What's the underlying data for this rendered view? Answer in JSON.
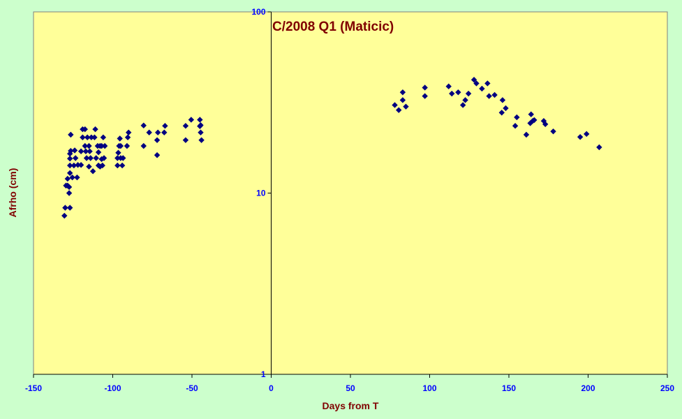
{
  "chart_data": {
    "type": "scatter",
    "title": "C/2008 Q1 (Maticic)",
    "xlabel": "Days from T",
    "ylabel": "Afrho (cm)",
    "xlim": [
      -150,
      250
    ],
    "ylim": [
      1,
      100
    ],
    "y_scale": "log",
    "x_ticks": [
      -150,
      -100,
      -50,
      0,
      50,
      100,
      150,
      200,
      250
    ],
    "y_ticks": [
      1,
      10,
      100
    ],
    "x_tick_labels": [
      "-150",
      "-100",
      "-50",
      "0",
      "50",
      "100",
      "150",
      "200",
      "250"
    ],
    "y_tick_labels": [
      "1",
      "10",
      "100"
    ],
    "grid": false,
    "legend": "none",
    "colors": {
      "plot_background": "#ffff99",
      "page_background": "#ccffcc",
      "marker": "#000080",
      "tick_text": "#0000ff",
      "title_text": "#800000"
    },
    "series": [
      {
        "marker": "diamond",
        "points": [
          [
            -130.5,
            7.5
          ],
          [
            -130,
            8.3
          ],
          [
            -129.5,
            11
          ],
          [
            -128.5,
            12
          ],
          [
            -128.5,
            11
          ],
          [
            -127,
            8.3
          ],
          [
            -127.5,
            10
          ],
          [
            -127.5,
            10.8
          ],
          [
            -127,
            12.9
          ],
          [
            -127,
            14.2
          ],
          [
            -127,
            15.5
          ],
          [
            -127,
            16.5
          ],
          [
            -126.5,
            17.1
          ],
          [
            -126.5,
            21
          ],
          [
            -125.5,
            12.2
          ],
          [
            -124.5,
            14.2
          ],
          [
            -124,
            17.2
          ],
          [
            -123.5,
            15.6
          ],
          [
            -122.5,
            12.2
          ],
          [
            -122,
            14.3
          ],
          [
            -120,
            14.3
          ],
          [
            -120,
            17
          ],
          [
            -119,
            20.3
          ],
          [
            -119,
            22.5
          ],
          [
            -117.5,
            22.5
          ],
          [
            -117.5,
            18.2
          ],
          [
            -117,
            17
          ],
          [
            -116.5,
            15.6
          ],
          [
            -116,
            20.3
          ],
          [
            -115,
            18.2
          ],
          [
            -115,
            14
          ],
          [
            -114.5,
            17
          ],
          [
            -114,
            15.6
          ],
          [
            -113.5,
            20.3
          ],
          [
            -112.5,
            13.2
          ],
          [
            -111.5,
            20.3
          ],
          [
            -111,
            22.5
          ],
          [
            -110.5,
            15.6
          ],
          [
            -109.5,
            18.2
          ],
          [
            -109,
            14.2
          ],
          [
            -109,
            16.8
          ],
          [
            -108,
            14
          ],
          [
            -108,
            18.2
          ],
          [
            -107,
            15.4
          ],
          [
            -107,
            18.2
          ],
          [
            -106.5,
            14.2
          ],
          [
            -106,
            20.3
          ],
          [
            -105.5,
            15.6
          ],
          [
            -105,
            18.2
          ],
          [
            -97,
            14.2
          ],
          [
            -97,
            15.6
          ],
          [
            -96.5,
            16.7
          ],
          [
            -96,
            18.2
          ],
          [
            -95.5,
            20
          ],
          [
            -95,
            15.6
          ],
          [
            -95,
            18.2
          ],
          [
            -94,
            14.2
          ],
          [
            -93.5,
            15.6
          ],
          [
            -91,
            18.2
          ],
          [
            -90.5,
            20.3
          ],
          [
            -90,
            21.6
          ],
          [
            -80.5,
            23.6
          ],
          [
            -80.5,
            18.2
          ],
          [
            -77,
            21.6
          ],
          [
            -72,
            16.2
          ],
          [
            -72,
            19.6
          ],
          [
            -71.5,
            21.6
          ],
          [
            -67.5,
            21.6
          ],
          [
            -67,
            23.5
          ],
          [
            -54,
            23.5
          ],
          [
            -54,
            19.6
          ],
          [
            -50.5,
            25.4
          ],
          [
            -45,
            25.4
          ],
          [
            -45,
            23.4
          ],
          [
            -44.5,
            23.7
          ],
          [
            -44.5,
            21.6
          ],
          [
            -44,
            19.6
          ],
          [
            78,
            30.6
          ],
          [
            80.5,
            28.7
          ],
          [
            83,
            32.6
          ],
          [
            83,
            36
          ],
          [
            85,
            30
          ],
          [
            97,
            38.2
          ],
          [
            97,
            34.3
          ],
          [
            112,
            38.8
          ],
          [
            114,
            35.4
          ],
          [
            118,
            36
          ],
          [
            121,
            30.6
          ],
          [
            122.5,
            32.6
          ],
          [
            124.5,
            35.4
          ],
          [
            128,
            42.2
          ],
          [
            129.5,
            40.3
          ],
          [
            133,
            37.7
          ],
          [
            136.5,
            40.3
          ],
          [
            137.5,
            34.3
          ],
          [
            141,
            34.8
          ],
          [
            145.5,
            27.8
          ],
          [
            146,
            32.6
          ],
          [
            148,
            29.4
          ],
          [
            154,
            23.5
          ],
          [
            155,
            26.2
          ],
          [
            161,
            21
          ],
          [
            163.5,
            24.3
          ],
          [
            164,
            27.2
          ],
          [
            165,
            25
          ],
          [
            166,
            25.3
          ],
          [
            172,
            25
          ],
          [
            173,
            24
          ],
          [
            178,
            21.9
          ],
          [
            195,
            20.4
          ],
          [
            199,
            21.2
          ],
          [
            207,
            17.9
          ]
        ]
      }
    ]
  }
}
